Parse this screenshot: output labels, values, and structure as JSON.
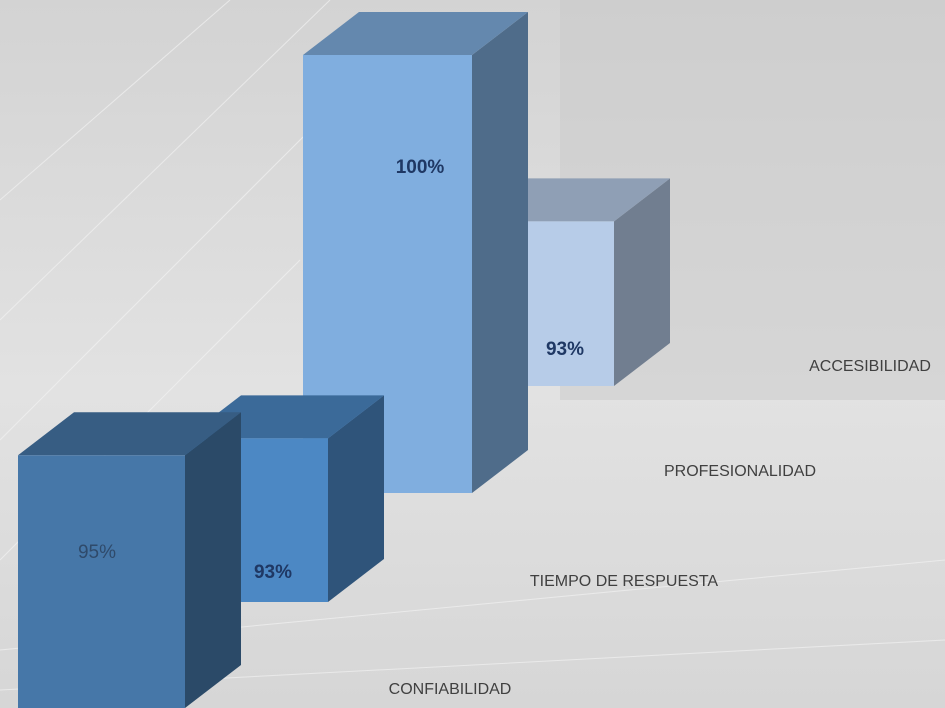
{
  "chart_data": {
    "type": "bar3d",
    "categories": [
      "CONFIABILIDAD",
      "TIEMPO DE RESPUESTA",
      "PROFESIONALIDAD",
      "ACCESIBILIDAD"
    ],
    "values": [
      95,
      93,
      100,
      93
    ],
    "value_labels": [
      "95%",
      "93%",
      "100%",
      "93%"
    ],
    "colors": [
      "#4677a8",
      "#4c88c4",
      "#80aedf",
      "#b7cce8"
    ]
  }
}
